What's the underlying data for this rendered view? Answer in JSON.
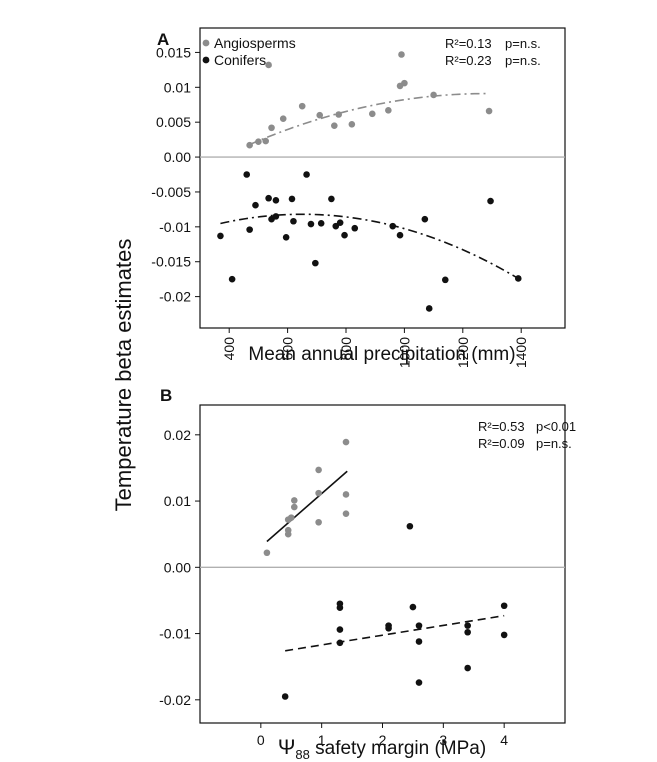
{
  "figure": {
    "y_axis_label": "Temperature beta estimates"
  },
  "chart_data": [
    {
      "panel": "A",
      "type": "scatter",
      "xlabel": "Mean annual precipitation (mm)",
      "ylabel": "Temperature beta estimates",
      "xlim": [
        300,
        1550
      ],
      "ylim": [
        -0.0245,
        0.0185
      ],
      "x_ticks": [
        400,
        600,
        800,
        1000,
        1200,
        1400
      ],
      "y_ticks": [
        0.015,
        0.01,
        0.005,
        0.0,
        -0.005,
        -0.01,
        -0.015,
        -0.02
      ],
      "y_tick_labels": [
        "0.015",
        "0.01",
        "0.005",
        "0.00",
        "-0.005",
        "-0.01",
        "-0.015",
        "-0.02"
      ],
      "grid": false,
      "legend_position": "top-left",
      "zero_line": 0,
      "stats": [
        {
          "r2": "R²=0.13",
          "p": "p=n.s."
        },
        {
          "r2": "R²=0.23",
          "p": "p=n.s."
        }
      ],
      "series": [
        {
          "name": "Angiosperms",
          "color": "#8c8c8c",
          "points": [
            [
              470,
              0.0017
            ],
            [
              500,
              0.0022
            ],
            [
              525,
              0.0023
            ],
            [
              535,
              0.0132
            ],
            [
              545,
              0.0042
            ],
            [
              585,
              0.0055
            ],
            [
              650,
              0.0073
            ],
            [
              710,
              0.006
            ],
            [
              760,
              0.0045
            ],
            [
              775,
              0.0061
            ],
            [
              820,
              0.0047
            ],
            [
              890,
              0.0062
            ],
            [
              945,
              0.0067
            ],
            [
              985,
              0.0102
            ],
            [
              990,
              0.0147
            ],
            [
              1000,
              0.0106
            ],
            [
              1100,
              0.0089
            ],
            [
              1290,
              0.0066
            ]
          ],
          "fit": {
            "style": "dash-dot",
            "x": [
              470,
              1280
            ],
            "y": [
              0.0018,
              0.0091
            ],
            "type": "quadratic",
            "xv": 1280
          }
        },
        {
          "name": "Conifers",
          "color": "#111111",
          "points": [
            [
              370,
              -0.0113
            ],
            [
              410,
              -0.0175
            ],
            [
              460,
              -0.0025
            ],
            [
              470,
              -0.0104
            ],
            [
              490,
              -0.0069
            ],
            [
              535,
              -0.0059
            ],
            [
              545,
              -0.0089
            ],
            [
              560,
              -0.0085
            ],
            [
              560,
              -0.0062
            ],
            [
              595,
              -0.0115
            ],
            [
              615,
              -0.006
            ],
            [
              620,
              -0.0092
            ],
            [
              665,
              -0.0025
            ],
            [
              680,
              -0.0096
            ],
            [
              695,
              -0.0152
            ],
            [
              715,
              -0.0095
            ],
            [
              750,
              -0.006
            ],
            [
              765,
              -0.0099
            ],
            [
              780,
              -0.0094
            ],
            [
              795,
              -0.0112
            ],
            [
              830,
              -0.0102
            ],
            [
              960,
              -0.0099
            ],
            [
              985,
              -0.0112
            ],
            [
              1070,
              -0.0089
            ],
            [
              1085,
              -0.0217
            ],
            [
              1140,
              -0.0176
            ],
            [
              1295,
              -0.0063
            ],
            [
              1390,
              -0.0174
            ]
          ],
          "fit": {
            "style": "dash-dot",
            "x": [
              370,
              1390
            ],
            "y": [
              -0.0093,
              -0.0174
            ],
            "type": "quadratic",
            "xv": 650,
            "yv": -0.0082
          }
        }
      ]
    },
    {
      "panel": "B",
      "type": "scatter",
      "xlabel_prefix": "Ψ",
      "xlabel_sub": "88",
      "xlabel_suffix": " safety margin (MPa)",
      "xlim": [
        -1,
        5
      ],
      "ylim": [
        -0.0235,
        0.0245
      ],
      "x_ticks": [
        0,
        1,
        2,
        3,
        4
      ],
      "y_ticks": [
        0.02,
        0.01,
        0.0,
        -0.01,
        -0.02
      ],
      "y_tick_labels": [
        "0.02",
        "0.01",
        "0.00",
        "-0.01",
        "-0.02"
      ],
      "grid": false,
      "zero_line": 0,
      "stats": [
        {
          "r2": "R²=0.53",
          "p": "p<0.01"
        },
        {
          "r2": "R²=0.09",
          "p": "p=n.s."
        }
      ],
      "series": [
        {
          "name": "Angiosperms",
          "color": "#8c8c8c",
          "points": [
            [
              0.1,
              0.0022
            ],
            [
              0.45,
              0.005
            ],
            [
              0.45,
              0.0056
            ],
            [
              0.45,
              0.0072
            ],
            [
              0.5,
              0.0075
            ],
            [
              0.55,
              0.0091
            ],
            [
              0.55,
              0.0101
            ],
            [
              0.95,
              0.0068
            ],
            [
              0.95,
              0.0112
            ],
            [
              0.95,
              0.0147
            ],
            [
              1.4,
              0.0081
            ],
            [
              1.4,
              0.011
            ],
            [
              1.4,
              0.0189
            ]
          ],
          "fit": {
            "style": "solid",
            "x": [
              0.1,
              1.42
            ],
            "y": [
              0.0039,
              0.0145
            ],
            "type": "linear"
          }
        },
        {
          "name": "Conifers",
          "color": "#111111",
          "points": [
            [
              0.4,
              -0.0195
            ],
            [
              1.3,
              -0.0055
            ],
            [
              1.3,
              -0.0061
            ],
            [
              1.3,
              -0.0094
            ],
            [
              1.3,
              -0.0114
            ],
            [
              2.1,
              -0.0088
            ],
            [
              2.1,
              -0.0092
            ],
            [
              2.45,
              0.0062
            ],
            [
              2.5,
              -0.006
            ],
            [
              2.6,
              -0.0088
            ],
            [
              2.6,
              -0.0112
            ],
            [
              2.6,
              -0.0174
            ],
            [
              3.4,
              -0.0088
            ],
            [
              3.4,
              -0.0098
            ],
            [
              3.4,
              -0.0152
            ],
            [
              4.0,
              -0.0058
            ],
            [
              4.0,
              -0.0102
            ]
          ],
          "fit": {
            "style": "dashed",
            "x": [
              0.4,
              4.0
            ],
            "y": [
              -0.0126,
              -0.0073
            ],
            "type": "linear"
          }
        }
      ]
    }
  ]
}
